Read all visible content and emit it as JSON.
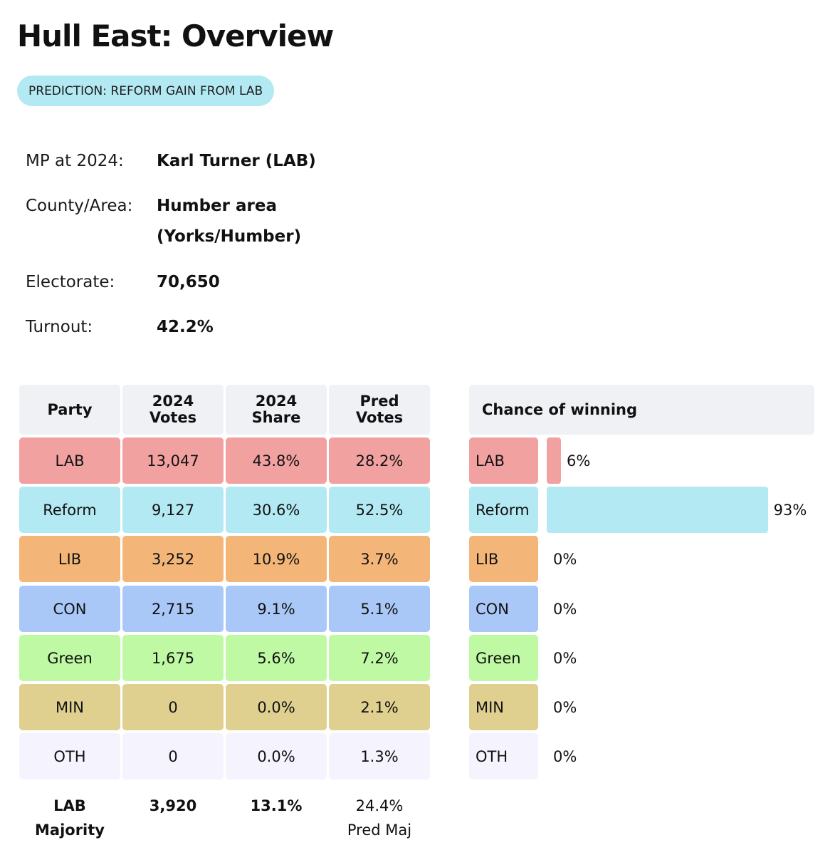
{
  "page": {
    "title": "Hull East: Overview",
    "prediction": "PREDICTION: REFORM GAIN FROM LAB"
  },
  "info": {
    "mp_label": "MP at 2024:",
    "mp_value": "Karl Turner  (LAB)",
    "county_label": "County/Area:",
    "county_value_line1": "Humber area",
    "county_value_line2": "(Yorks/Humber)",
    "electorate_label": "Electorate:",
    "electorate_value": "70,650",
    "turnout_label": "Turnout:",
    "turnout_value": "42.2%"
  },
  "table": {
    "headers": {
      "party": "Party",
      "votes_2024_l1": "2024",
      "votes_2024_l2": "Votes",
      "share_2024_l1": "2024",
      "share_2024_l2": "Share",
      "pred_l1": "Pred",
      "pred_l2": "Votes"
    },
    "rows": [
      {
        "party": "LAB",
        "votes": "13,047",
        "share": "43.8%",
        "pred": "28.2%"
      },
      {
        "party": "Reform",
        "votes": "9,127",
        "share": "30.6%",
        "pred": "52.5%"
      },
      {
        "party": "LIB",
        "votes": "3,252",
        "share": "10.9%",
        "pred": "3.7%"
      },
      {
        "party": "CON",
        "votes": "2,715",
        "share": "9.1%",
        "pred": "5.1%"
      },
      {
        "party": "Green",
        "votes": "1,675",
        "share": "5.6%",
        "pred": "7.2%"
      },
      {
        "party": "MIN",
        "votes": "0",
        "share": "0.0%",
        "pred": "2.1%"
      },
      {
        "party": "OTH",
        "votes": "0",
        "share": "0.0%",
        "pred": "1.3%"
      }
    ],
    "footer": {
      "majority_party": "LAB",
      "majority_word": "Majority",
      "majority_votes": "3,920",
      "majority_share": "13.1%",
      "pred_maj_value": "24.4%",
      "pred_maj_label": "Pred Maj"
    }
  },
  "chance": {
    "header": "Chance of winning",
    "rows": [
      {
        "party": "LAB",
        "label": "6%",
        "value": 6
      },
      {
        "party": "Reform",
        "label": "93%",
        "value": 93
      },
      {
        "party": "LIB",
        "label": "0%",
        "value": 0
      },
      {
        "party": "CON",
        "label": "0%",
        "value": 0
      },
      {
        "party": "Green",
        "label": "0%",
        "value": 0
      },
      {
        "party": "MIN",
        "label": "0%",
        "value": 0
      },
      {
        "party": "OTH",
        "label": "0%",
        "value": 0
      }
    ]
  },
  "colors": {
    "LAB": "#f2a1a1",
    "Reform": "#b3e9f2",
    "LIB": "#f4b678",
    "CON": "#a9c8f8",
    "Green": "#bff9a3",
    "MIN": "#e0d090",
    "OTH": "#f5f3fd",
    "header_bg": "#f0f1f4"
  }
}
